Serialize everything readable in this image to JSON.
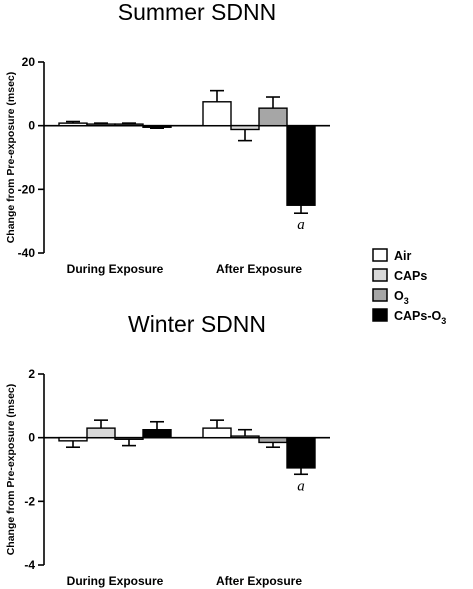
{
  "chart_data": [
    {
      "type": "bar",
      "title": "Summer SDNN",
      "ylabel": "Change from Pre-exposure (msec)",
      "ylim": [
        -40,
        20
      ],
      "yticks": [
        "20",
        "0",
        "-20",
        "-40"
      ],
      "categories": [
        "During Exposure",
        "After Exposure"
      ],
      "series": [
        {
          "name": "Air",
          "values": [
            0.8,
            7.5
          ],
          "errors": [
            0.5,
            3.5
          ],
          "color": "#ffffff"
        },
        {
          "name": "CAPs",
          "values": [
            0.5,
            -1.2
          ],
          "errors": [
            0.3,
            3.5
          ],
          "color": "#d9d9d9"
        },
        {
          "name": "O3",
          "values": [
            0.5,
            5.5
          ],
          "errors": [
            0.3,
            3.5
          ],
          "color": "#a6a6a6"
        },
        {
          "name": "CAPs-O3",
          "values": [
            -0.5,
            -25
          ],
          "errors": [
            0.3,
            2.5
          ],
          "color": "#000000"
        }
      ],
      "annotations": [
        {
          "text": "a",
          "category": "After Exposure",
          "series": "CAPs-O3"
        }
      ]
    },
    {
      "type": "bar",
      "title": "Winter SDNN",
      "ylabel": "Change from Pre-exposure (msec)",
      "ylim": [
        -4,
        2
      ],
      "yticks": [
        "2",
        "0",
        "-2",
        "-4"
      ],
      "categories": [
        "During Exposure",
        "After Exposure"
      ],
      "series": [
        {
          "name": "Air",
          "values": [
            -0.1,
            0.3
          ],
          "errors": [
            0.2,
            0.25
          ],
          "color": "#ffffff"
        },
        {
          "name": "CAPs",
          "values": [
            0.3,
            0.05
          ],
          "errors": [
            0.25,
            0.2
          ],
          "color": "#d9d9d9"
        },
        {
          "name": "O3",
          "values": [
            -0.05,
            -0.15
          ],
          "errors": [
            0.2,
            0.15
          ],
          "color": "#a6a6a6"
        },
        {
          "name": "CAPs-O3",
          "values": [
            0.25,
            -0.95
          ],
          "errors": [
            0.25,
            0.2
          ],
          "color": "#000000"
        }
      ],
      "annotations": [
        {
          "text": "a",
          "category": "After Exposure",
          "series": "CAPs-O3"
        }
      ]
    }
  ],
  "legend": {
    "placement": "right",
    "items": [
      {
        "label": "Air",
        "color": "#ffffff"
      },
      {
        "label": "CAPs",
        "color": "#d9d9d9"
      },
      {
        "label": "O",
        "sub": "3",
        "color": "#a6a6a6"
      },
      {
        "label": "CAPs-O",
        "sub": "3",
        "color": "#000000"
      }
    ]
  }
}
